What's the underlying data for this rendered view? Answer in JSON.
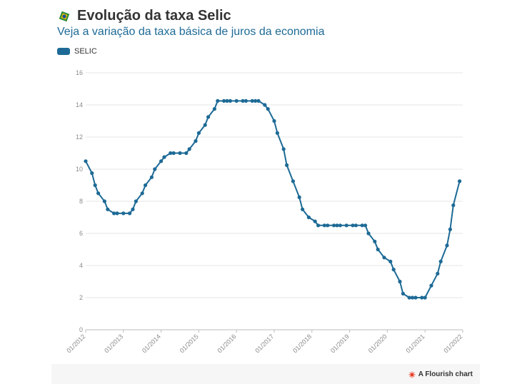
{
  "header": {
    "title": "Evolução da taxa Selic",
    "subtitle": "Veja a variação da taxa básica de juros da economia"
  },
  "footer": {
    "credit": "A Flourish chart"
  },
  "colors": {
    "series": "#1d6a96",
    "grid": "#e6e6e6",
    "flourish": "#e8402a"
  },
  "chart_data": {
    "type": "line",
    "xlabel": "",
    "ylabel": "",
    "ylim": [
      0,
      16
    ],
    "yticks": [
      0,
      2,
      4,
      6,
      8,
      10,
      12,
      14,
      16
    ],
    "xlim": [
      "2012-01",
      "2022-01"
    ],
    "xticks": [
      "01/2012",
      "01/2013",
      "01/2014",
      "01/2015",
      "01/2016",
      "01/2017",
      "01/2018",
      "01/2019",
      "01/2020",
      "01/2021",
      "01/2022"
    ],
    "grid": true,
    "legend_position": "top-left",
    "series": [
      {
        "name": "SELIC",
        "color": "#1d6a96",
        "points": [
          [
            "2012-01",
            10.5
          ],
          [
            "2012-03",
            9.75
          ],
          [
            "2012-04",
            9.0
          ],
          [
            "2012-05",
            8.5
          ],
          [
            "2012-07",
            8.0
          ],
          [
            "2012-08",
            7.5
          ],
          [
            "2012-10",
            7.25
          ],
          [
            "2012-11",
            7.25
          ],
          [
            "2013-01",
            7.25
          ],
          [
            "2013-03",
            7.25
          ],
          [
            "2013-04",
            7.5
          ],
          [
            "2013-05",
            8.0
          ],
          [
            "2013-07",
            8.5
          ],
          [
            "2013-08",
            9.0
          ],
          [
            "2013-10",
            9.5
          ],
          [
            "2013-11",
            10.0
          ],
          [
            "2014-01",
            10.5
          ],
          [
            "2014-02",
            10.75
          ],
          [
            "2014-04",
            11.0
          ],
          [
            "2014-05",
            11.0
          ],
          [
            "2014-07",
            11.0
          ],
          [
            "2014-09",
            11.0
          ],
          [
            "2014-10",
            11.25
          ],
          [
            "2014-12",
            11.75
          ],
          [
            "2015-01",
            12.25
          ],
          [
            "2015-03",
            12.75
          ],
          [
            "2015-04",
            13.25
          ],
          [
            "2015-06",
            13.75
          ],
          [
            "2015-07",
            14.25
          ],
          [
            "2015-09",
            14.25
          ],
          [
            "2015-10",
            14.25
          ],
          [
            "2015-11",
            14.25
          ],
          [
            "2016-01",
            14.25
          ],
          [
            "2016-03",
            14.25
          ],
          [
            "2016-04",
            14.25
          ],
          [
            "2016-06",
            14.25
          ],
          [
            "2016-07",
            14.25
          ],
          [
            "2016-08",
            14.25
          ],
          [
            "2016-10",
            14.0
          ],
          [
            "2016-11",
            13.75
          ],
          [
            "2017-01",
            13.0
          ],
          [
            "2017-02",
            12.25
          ],
          [
            "2017-04",
            11.25
          ],
          [
            "2017-05",
            10.25
          ],
          [
            "2017-07",
            9.25
          ],
          [
            "2017-09",
            8.25
          ],
          [
            "2017-10",
            7.5
          ],
          [
            "2017-12",
            7.0
          ],
          [
            "2018-02",
            6.75
          ],
          [
            "2018-03",
            6.5
          ],
          [
            "2018-05",
            6.5
          ],
          [
            "2018-06",
            6.5
          ],
          [
            "2018-08",
            6.5
          ],
          [
            "2018-09",
            6.5
          ],
          [
            "2018-10",
            6.5
          ],
          [
            "2018-12",
            6.5
          ],
          [
            "2019-02",
            6.5
          ],
          [
            "2019-03",
            6.5
          ],
          [
            "2019-05",
            6.5
          ],
          [
            "2019-06",
            6.5
          ],
          [
            "2019-07",
            6.0
          ],
          [
            "2019-09",
            5.5
          ],
          [
            "2019-10",
            5.0
          ],
          [
            "2019-12",
            4.5
          ],
          [
            "2020-02",
            4.25
          ],
          [
            "2020-03",
            3.75
          ],
          [
            "2020-05",
            3.0
          ],
          [
            "2020-06",
            2.25
          ],
          [
            "2020-08",
            2.0
          ],
          [
            "2020-09",
            2.0
          ],
          [
            "2020-10",
            2.0
          ],
          [
            "2020-12",
            2.0
          ],
          [
            "2021-01",
            2.0
          ],
          [
            "2021-03",
            2.75
          ],
          [
            "2021-05",
            3.5
          ],
          [
            "2021-06",
            4.25
          ],
          [
            "2021-08",
            5.25
          ],
          [
            "2021-09",
            6.25
          ],
          [
            "2021-10",
            7.75
          ],
          [
            "2021-12",
            9.25
          ]
        ]
      }
    ]
  }
}
